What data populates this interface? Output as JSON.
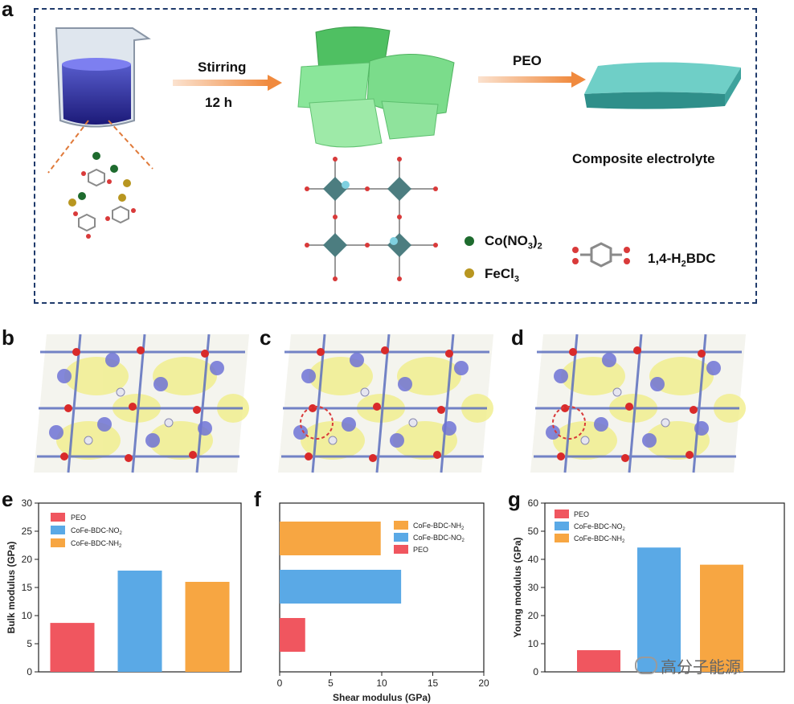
{
  "panels": {
    "a": "a",
    "b": "b",
    "c": "c",
    "d": "d",
    "e": "e",
    "f": "f",
    "g": "g"
  },
  "schematic": {
    "step1_label": "Stirring",
    "step1_time": "12 h",
    "step2_label": "PEO",
    "product_label": "Composite electrolyte",
    "legend": {
      "co": "Co(NO",
      "co_sub": "3",
      "co_close": ")",
      "co_sub2": "2",
      "fe": "FeCl",
      "fe_sub": "3",
      "bdc_pre": "1,4-H",
      "bdc_sub": "2",
      "bdc_post": "BDC"
    }
  },
  "watermark": "高分子能源",
  "colors": {
    "peo": "#f0565f",
    "no2": "#5aa9e6",
    "nh2": "#f7a642",
    "frame_blue": "#1f3a6b",
    "green_sheet": "#6fdc7e",
    "teal_film": "#4fb6b0"
  },
  "chart_data": [
    {
      "id": "e",
      "type": "bar",
      "ylabel": "Bulk modulus (GPa)",
      "ylim": [
        0,
        30
      ],
      "yticks": [
        0,
        5,
        10,
        15,
        20,
        25,
        30
      ],
      "legend": [
        "PEO",
        "CoFe-BDC-NO2",
        "CoFe-BDC-NH2"
      ],
      "legend_display": [
        {
          "pre": "PEO",
          "sub": "",
          "color": "#f0565f"
        },
        {
          "pre": "CoFe-BDC-NO",
          "sub": "2",
          "color": "#5aa9e6"
        },
        {
          "pre": "CoFe-BDC-NH",
          "sub": "2",
          "color": "#f7a642"
        }
      ],
      "categories": [
        "PEO",
        "CoFe-BDC-NO2",
        "CoFe-BDC-NH2"
      ],
      "values": [
        8.7,
        18.0,
        16.0
      ]
    },
    {
      "id": "f",
      "type": "bar-horizontal",
      "xlabel": "Shear modulus (GPa)",
      "xlim": [
        0,
        20
      ],
      "xticks": [
        0,
        5,
        10,
        15,
        20
      ],
      "legend_display": [
        {
          "pre": "CoFe-BDC-NH",
          "sub": "2",
          "color": "#f7a642"
        },
        {
          "pre": "CoFe-BDC-NO",
          "sub": "2",
          "color": "#5aa9e6"
        },
        {
          "pre": "PEO",
          "sub": "",
          "color": "#f0565f"
        }
      ],
      "categories": [
        "CoFe-BDC-NH2",
        "CoFe-BDC-NO2",
        "PEO"
      ],
      "values": [
        9.9,
        11.9,
        2.5
      ]
    },
    {
      "id": "g",
      "type": "bar",
      "ylabel": "Young modulus (GPa)",
      "ylim": [
        0,
        60
      ],
      "yticks": [
        0,
        10,
        20,
        30,
        40,
        50,
        60
      ],
      "legend_display": [
        {
          "pre": "PEO",
          "sub": "",
          "color": "#f0565f"
        },
        {
          "pre": "CoFe-BDC-NO",
          "sub": "2",
          "color": "#5aa9e6"
        },
        {
          "pre": "CoFe-BDC-NH",
          "sub": "2",
          "color": "#f7a642"
        }
      ],
      "categories": [
        "PEO",
        "CoFe-BDC-NO2",
        "CoFe-BDC-NH2"
      ],
      "values": [
        7.7,
        44.2,
        38.1
      ]
    }
  ]
}
